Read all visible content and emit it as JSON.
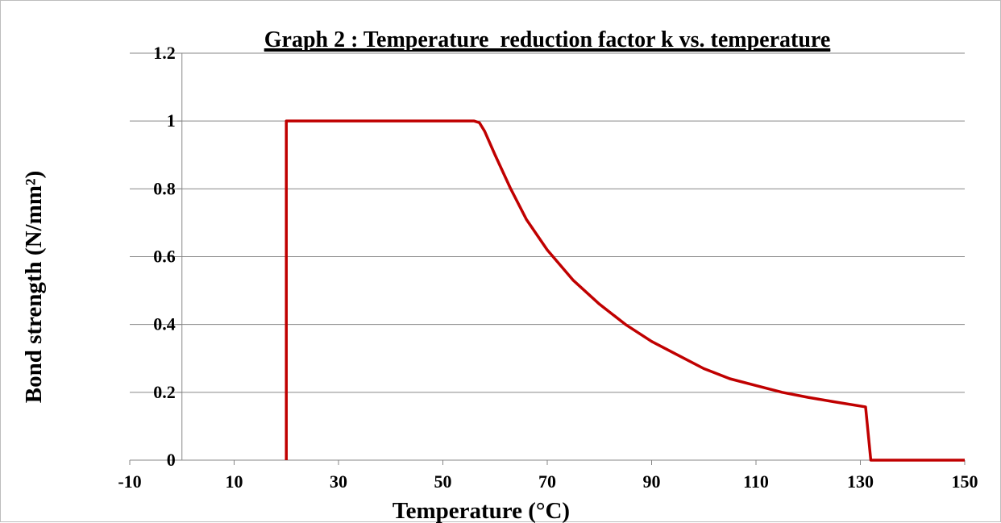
{
  "chart_data": {
    "type": "line",
    "title": "Graph 2 : Temperature  reduction factor k vs. temperature",
    "xlabel": "Temperature (°C)",
    "ylabel": "Bond strength (N/mm²)",
    "xlim": [
      -10,
      150
    ],
    "ylim": [
      0,
      1.2
    ],
    "x_ticks": [
      -10,
      10,
      30,
      50,
      70,
      90,
      110,
      130,
      150
    ],
    "x_tick_labels": [
      "-10",
      "10",
      "30",
      "50",
      "70",
      "90",
      "110",
      "130",
      "150"
    ],
    "y_ticks": [
      0,
      0.2,
      0.4,
      0.6,
      0.8,
      1,
      1.2
    ],
    "y_tick_labels": [
      "0",
      "0.2",
      "0.4",
      "0.6",
      "0.8",
      "1",
      "1.2"
    ],
    "grid": {
      "horizontal": true,
      "vertical": false
    },
    "legend": null,
    "series": [
      {
        "color": "#c00000",
        "x": [
          20,
          20,
          56,
          57,
          58,
          60,
          63,
          66,
          70,
          75,
          80,
          85,
          90,
          95,
          100,
          105,
          110,
          115,
          120,
          125,
          131,
          132,
          150
        ],
        "y": [
          0,
          1,
          1,
          0.995,
          0.97,
          0.9,
          0.8,
          0.71,
          0.62,
          0.53,
          0.46,
          0.4,
          0.35,
          0.31,
          0.27,
          0.24,
          0.22,
          0.2,
          0.185,
          0.172,
          0.157,
          0,
          0
        ]
      }
    ]
  }
}
